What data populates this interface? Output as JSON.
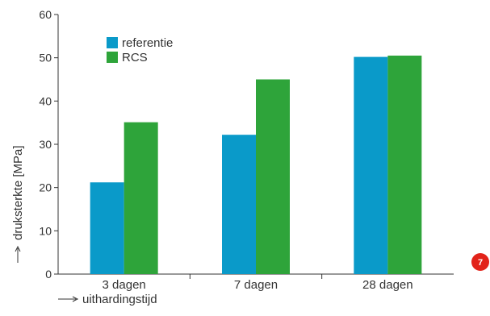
{
  "chart_data": {
    "type": "bar",
    "categories": [
      "3 dagen",
      "7 dagen",
      "28 dagen"
    ],
    "series": [
      {
        "name": "referentie",
        "values": [
          21.2,
          32.2,
          50.2
        ],
        "color": "#0a9ac9"
      },
      {
        "name": "RCS",
        "values": [
          35.1,
          45.0,
          50.5
        ],
        "color": "#2ea43a"
      }
    ],
    "xlabel": "uithardingstijd",
    "ylabel": "druksterkte [MPa]",
    "ylim": [
      0,
      60
    ],
    "yticks": [
      0,
      10,
      20,
      30,
      40,
      50,
      60
    ],
    "grid": false,
    "legend": "top-left"
  },
  "figure_number": "7",
  "colors": {
    "badge": "#e2231a",
    "axis": "#333333"
  }
}
